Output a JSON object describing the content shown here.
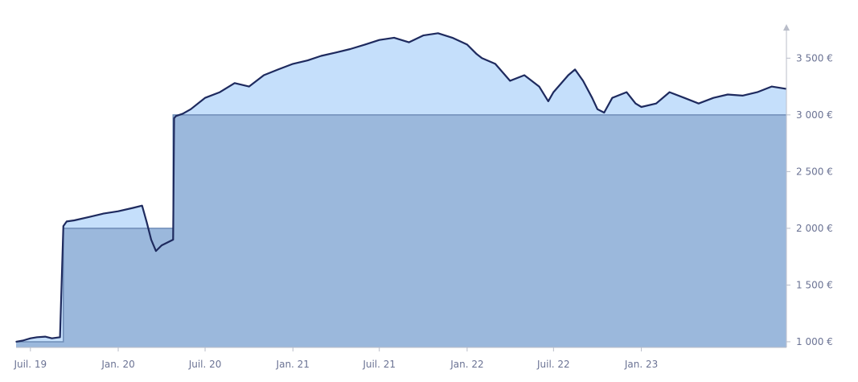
{
  "chart_data": {
    "type": "area",
    "title": "",
    "xlabel": "",
    "ylabel": "",
    "x_ticks": [
      "Juil. 19",
      "Jan. 20",
      "Juil. 20",
      "Jan. 21",
      "Juil. 21",
      "Jan. 22",
      "Juil. 22",
      "Jan. 23"
    ],
    "y_ticks": [
      "1 000 €",
      "1 500 €",
      "2 000 €",
      "2 500 €",
      "3 000 €",
      "3 500 €"
    ],
    "y_values": [
      1000,
      1500,
      2000,
      2500,
      3000,
      3500
    ],
    "ylim": [
      950,
      3800
    ],
    "xlim": [
      "2019-06-01",
      "2023-11-01"
    ],
    "grid": false,
    "legend": "none",
    "colors": {
      "value_line": "#1e2a5e",
      "value_fill": "#c5dffb",
      "invested_fill": "#9bb8dc",
      "invested_line": "#6f8db8",
      "loss_fill": "#7f8f9c",
      "axis": "#b9bdc9"
    },
    "series": [
      {
        "role": "portfolio value",
        "x": [
          "2019-06-01",
          "2019-06-15",
          "2019-07-01",
          "2019-07-15",
          "2019-08-01",
          "2019-08-15",
          "2019-09-01",
          "2019-09-08",
          "2019-09-15",
          "2019-10-01",
          "2019-11-01",
          "2019-12-01",
          "2020-01-01",
          "2020-02-01",
          "2020-02-20",
          "2020-03-01",
          "2020-03-10",
          "2020-03-20",
          "2020-04-01",
          "2020-04-25",
          "2020-04-27",
          "2020-05-01",
          "2020-05-15",
          "2020-06-01",
          "2020-07-01",
          "2020-08-01",
          "2020-09-01",
          "2020-10-01",
          "2020-11-01",
          "2020-12-01",
          "2021-01-01",
          "2021-02-01",
          "2021-03-01",
          "2021-04-01",
          "2021-05-01",
          "2021-06-01",
          "2021-07-01",
          "2021-08-01",
          "2021-09-01",
          "2021-10-01",
          "2021-11-01",
          "2021-12-01",
          "2022-01-01",
          "2022-01-20",
          "2022-02-01",
          "2022-03-01",
          "2022-04-01",
          "2022-05-01",
          "2022-06-01",
          "2022-06-20",
          "2022-07-01",
          "2022-08-01",
          "2022-08-15",
          "2022-09-01",
          "2022-09-20",
          "2022-10-01",
          "2022-10-15",
          "2022-11-01",
          "2022-12-01",
          "2022-12-20",
          "2023-01-01",
          "2023-02-01",
          "2023-03-01",
          "2023-04-01",
          "2023-05-01",
          "2023-06-01",
          "2023-07-01",
          "2023-08-01",
          "2023-09-01",
          "2023-10-01",
          "2023-10-31"
        ],
        "y": [
          1000,
          1010,
          1030,
          1040,
          1045,
          1030,
          1040,
          2020,
          2060,
          2070,
          2100,
          2130,
          2150,
          2180,
          2200,
          2050,
          1900,
          1800,
          1850,
          1900,
          2970,
          2990,
          3010,
          3050,
          3150,
          3200,
          3280,
          3250,
          3350,
          3400,
          3450,
          3480,
          3520,
          3550,
          3580,
          3620,
          3660,
          3680,
          3640,
          3700,
          3720,
          3680,
          3620,
          3540,
          3500,
          3450,
          3300,
          3350,
          3250,
          3120,
          3200,
          3350,
          3400,
          3300,
          3150,
          3050,
          3020,
          3150,
          3200,
          3100,
          3070,
          3100,
          3200,
          3150,
          3100,
          3150,
          3180,
          3170,
          3200,
          3250,
          3230
        ]
      },
      {
        "role": "invested amount",
        "x": [
          "2019-06-01",
          "2019-09-08",
          "2020-04-25",
          "2023-10-31"
        ],
        "y": [
          1000,
          2000,
          3000,
          3000
        ]
      }
    ]
  }
}
